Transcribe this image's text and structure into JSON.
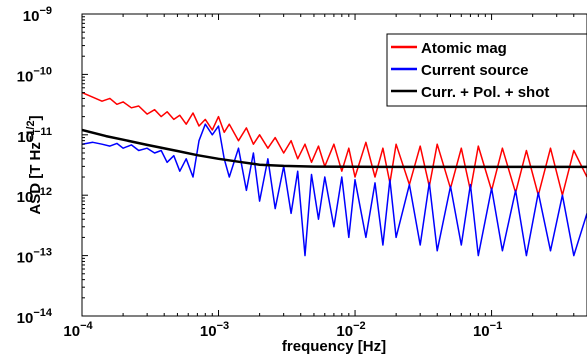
{
  "chart_data": {
    "type": "line",
    "title": "",
    "xlabel": "frequency [Hz]",
    "ylabel": "ASD [T Hz",
    "ylabel_exp": "−1/2",
    "ylabel_close": "]",
    "xscale": "log",
    "yscale": "log",
    "xlim": [
      0.0001,
      0.5
    ],
    "ylim": [
      1e-14,
      1e-09
    ],
    "grid": false,
    "legend_position": "top-right",
    "x_ticks": [
      {
        "value": 0.0001,
        "base": "10",
        "exp": "−4"
      },
      {
        "value": 0.001,
        "base": "10",
        "exp": "−3"
      },
      {
        "value": 0.01,
        "base": "10",
        "exp": "−2"
      },
      {
        "value": 0.1,
        "base": "10",
        "exp": "−1"
      }
    ],
    "y_ticks": [
      {
        "value": 1e-14,
        "base": "10",
        "exp": "−14"
      },
      {
        "value": 1e-13,
        "base": "10",
        "exp": "−13"
      },
      {
        "value": 1e-12,
        "base": "10",
        "exp": "−12"
      },
      {
        "value": 1e-11,
        "base": "10",
        "exp": "−11"
      },
      {
        "value": 1e-10,
        "base": "10",
        "exp": "−10"
      },
      {
        "value": 1e-09,
        "base": "10",
        "exp": "−9"
      }
    ],
    "series": [
      {
        "name": "Atomic mag",
        "color": "#ff0000",
        "x": [
          0.0001,
          0.00012,
          0.00014,
          0.00016,
          0.00018,
          0.0002,
          0.00023,
          0.00026,
          0.0003,
          0.00034,
          0.00038,
          0.00042,
          0.00047,
          0.00052,
          0.00058,
          0.00065,
          0.00072,
          0.0008,
          0.0009,
          0.001,
          0.0011,
          0.0012,
          0.0014,
          0.0016,
          0.0018,
          0.002,
          0.0023,
          0.0026,
          0.003,
          0.0034,
          0.0038,
          0.0043,
          0.0048,
          0.0054,
          0.006,
          0.007,
          0.008,
          0.009,
          0.01,
          0.012,
          0.014,
          0.016,
          0.018,
          0.02,
          0.025,
          0.03,
          0.035,
          0.04,
          0.05,
          0.06,
          0.07,
          0.08,
          0.1,
          0.12,
          0.15,
          0.18,
          0.22,
          0.27,
          0.33,
          0.4,
          0.5
        ],
        "y": [
          5e-11,
          4.2e-11,
          3.6e-11,
          4e-11,
          3.2e-11,
          3.5e-11,
          2.8e-11,
          3e-11,
          2.2e-11,
          2.6e-11,
          2e-11,
          2.4e-11,
          1.8e-11,
          2.1e-11,
          1.5e-11,
          2.3e-11,
          1.4e-11,
          1.8e-11,
          1.2e-11,
          2e-11,
          1.1e-11,
          1.5e-11,
          8e-12,
          1.3e-11,
          7e-12,
          1e-11,
          6e-12,
          9e-12,
          5e-12,
          8e-12,
          4e-12,
          7e-12,
          3.5e-12,
          6.5e-12,
          3e-12,
          7e-12,
          2.5e-12,
          6e-12,
          2e-12,
          7.5e-12,
          2e-12,
          6e-12,
          1.6e-12,
          7e-12,
          1.5e-12,
          6.5e-12,
          1.4e-12,
          7e-12,
          1.3e-12,
          6e-12,
          1.2e-12,
          6.5e-12,
          1.2e-12,
          6e-12,
          1.1e-12,
          5.5e-12,
          1e-12,
          6e-12,
          1e-12,
          5.5e-12,
          2e-12
        ]
      },
      {
        "name": "Current source",
        "color": "#0000ff",
        "x": [
          0.0001,
          0.00012,
          0.00014,
          0.00016,
          0.00018,
          0.0002,
          0.00023,
          0.00026,
          0.0003,
          0.00034,
          0.00038,
          0.00042,
          0.00047,
          0.00052,
          0.00058,
          0.00065,
          0.00072,
          0.0008,
          0.0009,
          0.001,
          0.0011,
          0.0012,
          0.0014,
          0.0016,
          0.0018,
          0.002,
          0.0023,
          0.0026,
          0.003,
          0.0034,
          0.0038,
          0.0043,
          0.0048,
          0.0054,
          0.006,
          0.007,
          0.008,
          0.009,
          0.01,
          0.012,
          0.014,
          0.016,
          0.018,
          0.02,
          0.025,
          0.03,
          0.035,
          0.04,
          0.05,
          0.06,
          0.07,
          0.08,
          0.1,
          0.12,
          0.15,
          0.18,
          0.22,
          0.27,
          0.33,
          0.4,
          0.5
        ],
        "y": [
          7e-12,
          7.5e-12,
          7e-12,
          6.5e-12,
          7.2e-12,
          6e-12,
          6.8e-12,
          5.5e-12,
          6e-12,
          5e-12,
          5.5e-12,
          3.5e-12,
          4.5e-12,
          2.5e-12,
          4e-12,
          2e-12,
          8e-12,
          1.5e-11,
          1e-11,
          1.4e-11,
          4e-12,
          2e-12,
          6e-12,
          1.2e-12,
          5e-12,
          8e-13,
          4e-12,
          6e-13,
          3e-12,
          5e-13,
          2.5e-12,
          1e-13,
          2.2e-12,
          4e-13,
          2e-12,
          3e-13,
          2e-12,
          2e-13,
          1.8e-12,
          2e-13,
          1.6e-12,
          1.5e-13,
          1.8e-12,
          2e-13,
          1.5e-12,
          1.5e-13,
          1.6e-12,
          1.2e-13,
          1.4e-12,
          1.5e-13,
          1.5e-12,
          1e-13,
          1.3e-12,
          1.2e-13,
          1.2e-12,
          1e-13,
          1.1e-12,
          1.2e-13,
          1e-12,
          1e-13,
          5e-13
        ]
      },
      {
        "name": "Curr. + Pol. + shot",
        "color": "#000000",
        "x": [
          0.0001,
          0.00015,
          0.0002,
          0.0003,
          0.0005,
          0.0007,
          0.001,
          0.0015,
          0.002,
          0.003,
          0.005,
          0.01,
          0.02,
          0.05,
          0.1,
          0.2,
          0.5
        ],
        "y": [
          1.2e-11,
          9.5e-12,
          8.3e-12,
          6.8e-12,
          5.4e-12,
          4.6e-12,
          4e-12,
          3.5e-12,
          3.2e-12,
          3.05e-12,
          2.98e-12,
          2.95e-12,
          2.94e-12,
          2.94e-12,
          2.94e-12,
          2.94e-12,
          2.94e-12
        ]
      }
    ]
  }
}
